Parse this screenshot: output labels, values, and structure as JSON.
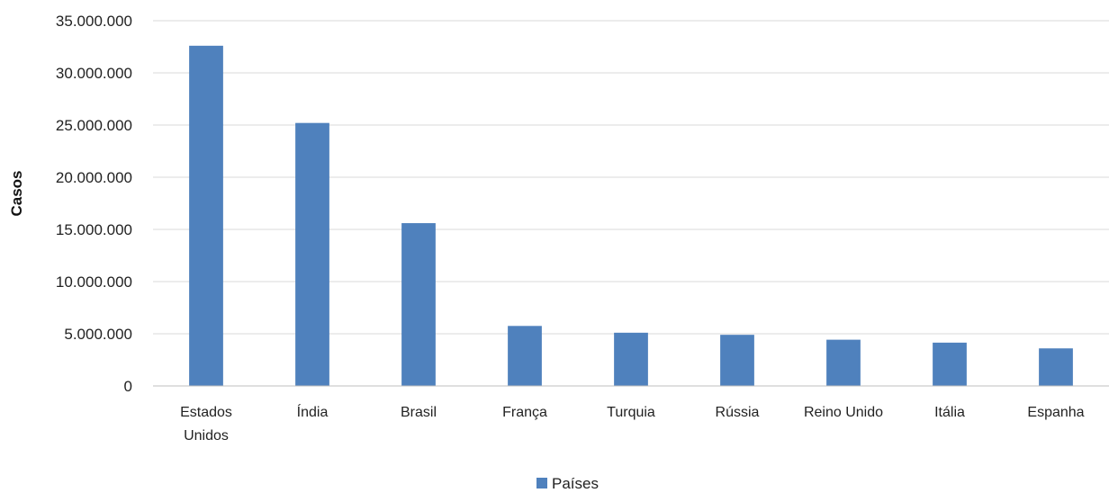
{
  "chart_data": {
    "type": "bar",
    "categories": [
      "Estados Unidos",
      "Índia",
      "Brasil",
      "França",
      "Turquia",
      "Rússia",
      "Reino Unido",
      "Itália",
      "Espanha"
    ],
    "category_lines": [
      [
        "Estados",
        "Unidos"
      ],
      [
        "Índia"
      ],
      [
        "Brasil"
      ],
      [
        "França"
      ],
      [
        "Turquia"
      ],
      [
        "Rússia"
      ],
      [
        "Reino Unido"
      ],
      [
        "Itália"
      ],
      [
        "Espanha"
      ]
    ],
    "series": [
      {
        "name": "Países",
        "color": "#4f81bd",
        "values": [
          32600000,
          25200000,
          15600000,
          5750000,
          5100000,
          4900000,
          4430000,
          4150000,
          3600000
        ]
      }
    ],
    "ylabel": "Casos",
    "xlabel": "",
    "ylim": [
      0,
      35000000
    ],
    "yticks": [
      0,
      5000000,
      10000000,
      15000000,
      20000000,
      25000000,
      30000000,
      35000000
    ],
    "ytick_labels": [
      "0",
      "5.000.000",
      "10.000.000",
      "15.000.000",
      "20.000.000",
      "25.000.000",
      "30.000.000",
      "35.000.000"
    ],
    "grid": true,
    "legend": "bottom"
  }
}
